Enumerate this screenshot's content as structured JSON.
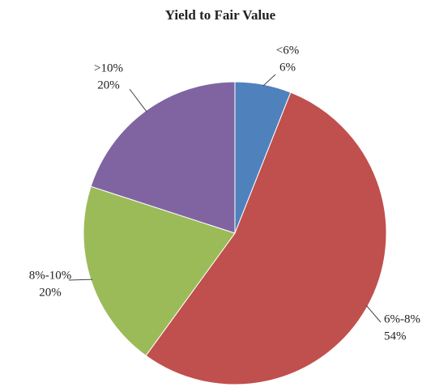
{
  "chart_data": {
    "type": "pie",
    "title": "Yield to Fair Value",
    "categories": [
      "<6%",
      "6%-8%",
      "8%-10%",
      ">10%"
    ],
    "values": [
      6,
      54,
      20,
      20
    ],
    "value_labels": [
      "6%",
      "54%",
      "20%",
      "20%"
    ],
    "colors": [
      "#4f81bd",
      "#c0504d",
      "#9bbb59",
      "#8064a2"
    ]
  }
}
